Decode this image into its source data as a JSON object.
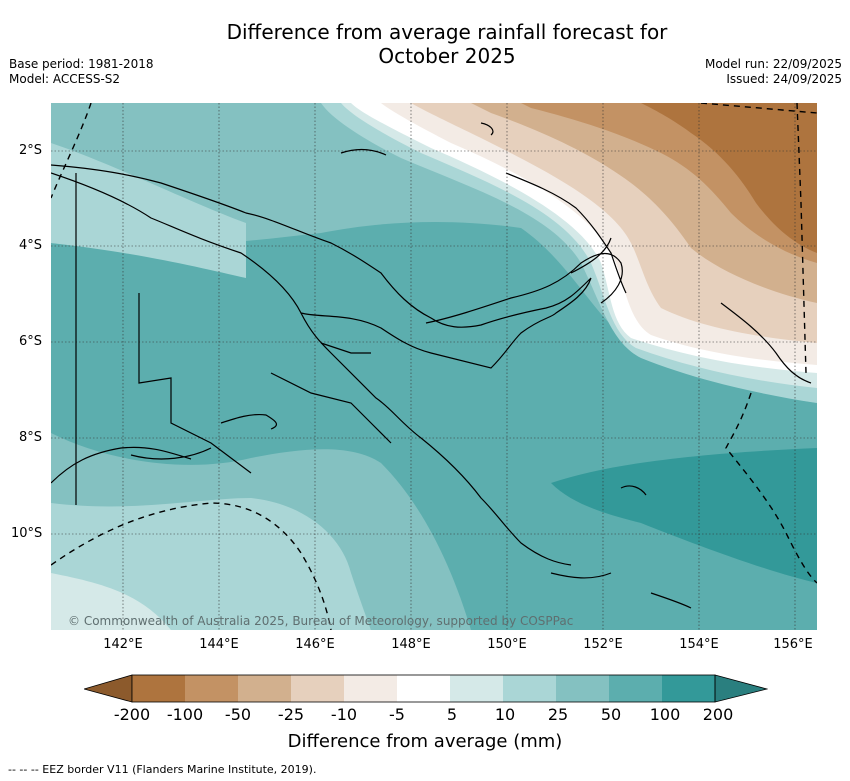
{
  "title": {
    "line1": "Difference from average rainfall forecast for",
    "line2": "October 2025"
  },
  "meta": {
    "base_period": "Base period: 1981-2018",
    "model": "Model: ACCESS-S2",
    "model_run": "Model run: 22/09/2025",
    "issued": "Issued: 24/09/2025"
  },
  "map": {
    "lat_ticks": [
      "2°S",
      "4°S",
      "6°S",
      "8°S",
      "10°S"
    ],
    "lon_ticks": [
      "142°E",
      "144°E",
      "146°E",
      "148°E",
      "150°E",
      "152°E",
      "154°E",
      "156°E"
    ],
    "credit": "© Commonwealth of Australia 2025, Bureau of Meteorology, supported by COSPPac"
  },
  "legend": {
    "title": "Difference from average (mm)",
    "labels": [
      "-200",
      "-100",
      "-50",
      "-25",
      "-10",
      "-5",
      "5",
      "10",
      "25",
      "50",
      "100",
      "200"
    ],
    "colors": [
      "#8c5a2c",
      "#ae743e",
      "#c39264",
      "#d2b08e",
      "#e6d0bd",
      "#f3ebe5",
      "#ffffff",
      "#d5e9e8",
      "#aad6d6",
      "#84c1c1",
      "#5caeae",
      "#339999",
      "#2a7f7f"
    ]
  },
  "footer": "--  --  -- EEZ border V11 (Flanders Marine Institute, 2019)."
}
